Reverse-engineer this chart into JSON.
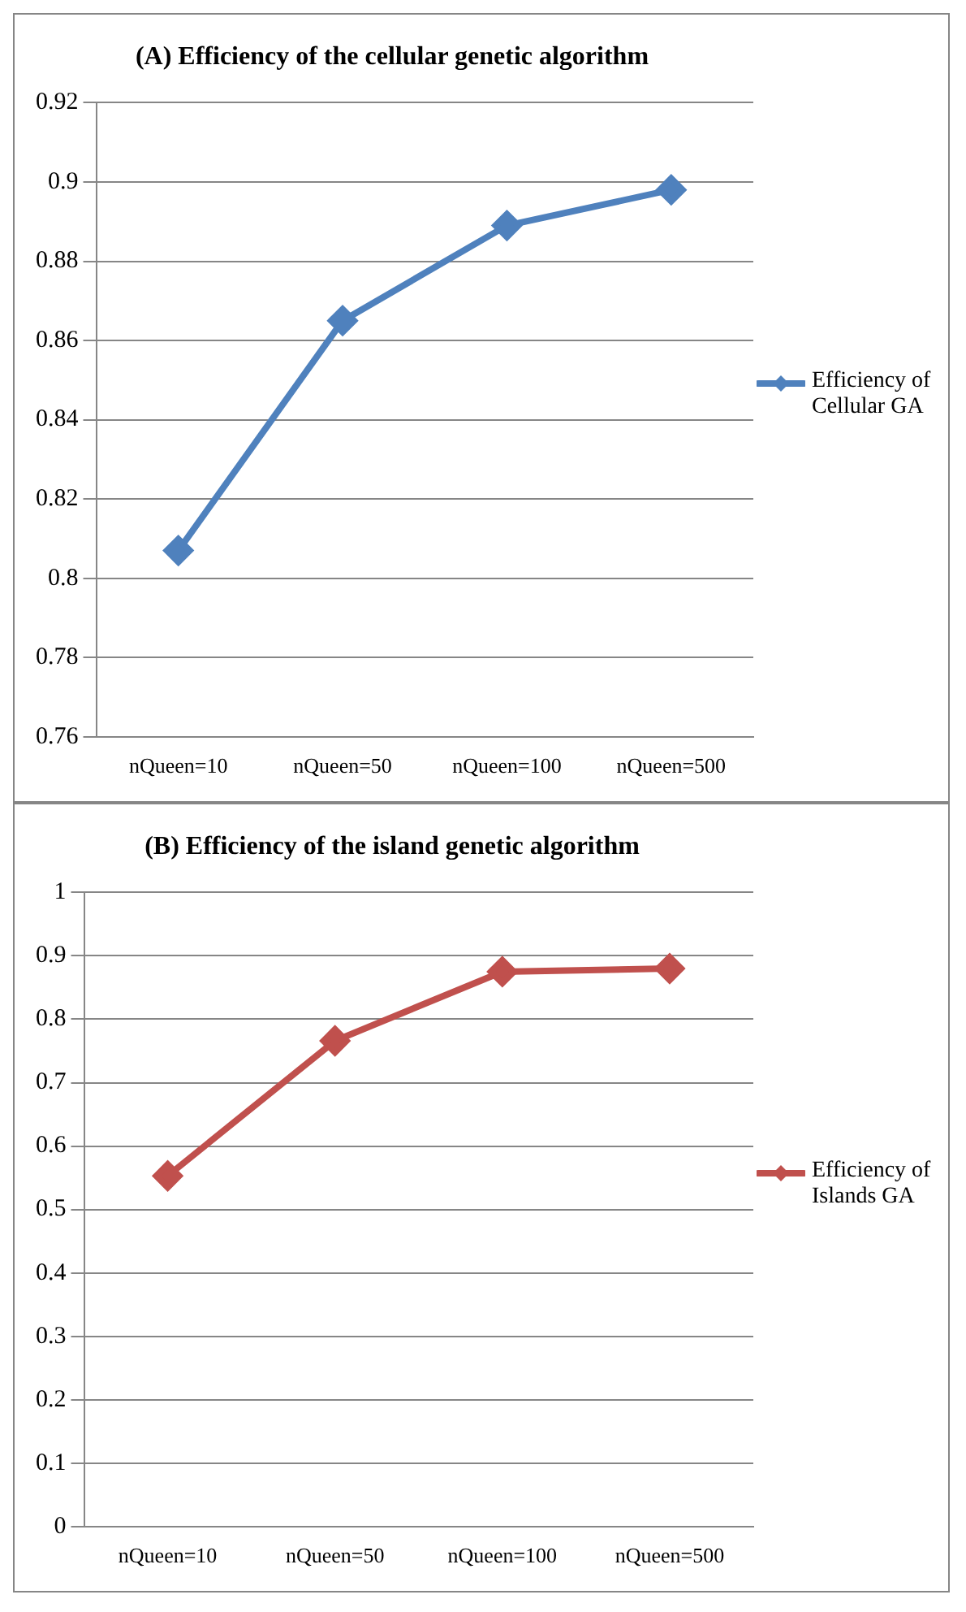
{
  "chart_data": [
    {
      "type": "line",
      "title": "(A) Efficiency of the cellular genetic algorithm",
      "categories": [
        "nQueen=10",
        "nQueen=50",
        "nQueen=100",
        "nQueen=500"
      ],
      "series": [
        {
          "name": "Efficiency of Cellular GA",
          "color": "#4f81bd",
          "values": [
            0.807,
            0.865,
            0.889,
            0.898
          ]
        }
      ],
      "ylim": [
        0.76,
        0.92
      ],
      "yticks": [
        0.76,
        0.78,
        0.8,
        0.82,
        0.84,
        0.86,
        0.88,
        0.9,
        0.92
      ],
      "grid": "y",
      "legend": "right",
      "marker": "diamond",
      "line_style": "solid"
    },
    {
      "type": "line",
      "title": "(B) Efficiency of the island genetic algorithm",
      "categories": [
        "nQueen=10",
        "nQueen=50",
        "nQueen=100",
        "nQueen=500"
      ],
      "series": [
        {
          "name": "Efficiency of Islands GA",
          "color": "#c0504d",
          "values": [
            0.553,
            0.766,
            0.875,
            0.88
          ]
        }
      ],
      "ylim": [
        0,
        1
      ],
      "yticks": [
        0,
        0.1,
        0.2,
        0.3,
        0.4,
        0.5,
        0.6,
        0.7,
        0.8,
        0.9,
        1
      ],
      "grid": "y",
      "legend": "right",
      "marker": "diamond",
      "line_style": "solid"
    }
  ]
}
